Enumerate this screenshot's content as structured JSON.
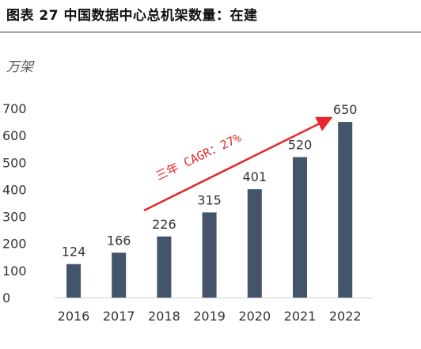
{
  "figure": {
    "title": "图表 27 中国数据中心总机架数量：在建"
  },
  "chart_data": {
    "type": "bar",
    "title": "图表 27 中国数据中心总机架数量：在建",
    "unit_label": "万架",
    "categories": [
      "2016",
      "2017",
      "2018",
      "2019",
      "2020",
      "2021",
      "2022"
    ],
    "values": [
      124,
      166,
      226,
      315,
      401,
      520,
      650
    ],
    "ylim": [
      0,
      700
    ],
    "yticks": [
      0,
      100,
      200,
      300,
      400,
      500,
      600,
      700
    ],
    "grid": false,
    "legend": "none",
    "bar_color": "#44546a",
    "annotation": {
      "text": "三年 CAGR：27%",
      "color": "#e8262b"
    }
  }
}
